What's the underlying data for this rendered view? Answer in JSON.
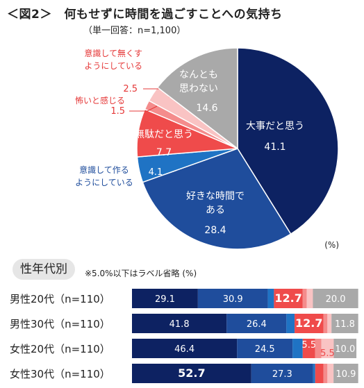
{
  "figure": {
    "title": "＜図2＞　何もせずに時間を過ごすことへの気持ち",
    "subtitle": "（単一回答：n=1,100）"
  },
  "chart_data": [
    {
      "type": "pie",
      "unit_label": "(%)",
      "slices": [
        {
          "label_lines": [
            "大事だと思う"
          ],
          "value": 41.1,
          "value_label": "41.1",
          "color": "#0d2262",
          "label_color": "#ffffff",
          "inside": true
        },
        {
          "label_lines": [
            "好きな時間で",
            "ある"
          ],
          "value": 28.4,
          "value_label": "28.4",
          "color": "#1f4d9c",
          "label_color": "#ffffff",
          "inside": true
        },
        {
          "label_lines": [
            "意識して作る",
            "ようにしている"
          ],
          "value": 4.1,
          "value_label": "4.1",
          "color": "#1f73c4",
          "label_color": "#1f4d9c",
          "inside": false
        },
        {
          "label_lines": [
            "無駄だと思う"
          ],
          "value": 7.7,
          "value_label": "7.7",
          "color": "#ef4b4b",
          "label_color": "#ffffff",
          "inside": true
        },
        {
          "label_lines": [
            "怖いと感じる"
          ],
          "value": 1.5,
          "value_label": "1.5",
          "color": "#f48c8c",
          "label_color": "#e53838",
          "inside": false
        },
        {
          "label_lines": [
            "意識して無くす",
            "ようにしている"
          ],
          "value": 2.5,
          "value_label": "2.5",
          "color": "#f9c3c3",
          "label_color": "#e53838",
          "inside": false
        },
        {
          "label_lines": [
            "なんとも",
            "思わない"
          ],
          "value": 14.6,
          "value_label": "14.6",
          "color": "#a9a9a9",
          "label_color": "#ffffff",
          "inside": true
        }
      ]
    },
    {
      "type": "bar",
      "orientation": "horizontal",
      "stacked": true,
      "heading": "性年代別",
      "note": "※5.0%以下はラベル省略",
      "unit_label": "(%)",
      "categories": [
        "男性20代（n=110）",
        "男性30代（n=110）",
        "女性20代（n=110）",
        "女性30代（n=110）"
      ],
      "series": [
        {
          "color": "#0d2262",
          "values": [
            29.1,
            41.8,
            46.4,
            52.7
          ]
        },
        {
          "color": "#1f4d9c",
          "values": [
            30.9,
            26.4,
            24.5,
            27.3
          ]
        },
        {
          "color": "#1f73c4",
          "values": [
            2.7,
            3.6,
            4.5,
            0.9
          ]
        },
        {
          "color": "#ef4b4b",
          "values": [
            12.7,
            12.7,
            5.5,
            3.6
          ]
        },
        {
          "color": "#f48c8c",
          "values": [
            1.8,
            1.8,
            2.7,
            1.8
          ]
        },
        {
          "color": "#f9c3c3",
          "values": [
            2.7,
            1.8,
            5.5,
            2.7
          ]
        },
        {
          "color": "#a9a9a9",
          "values": [
            20.0,
            11.8,
            10.0,
            10.9
          ]
        }
      ],
      "value_labels": [
        [
          "29.1",
          "30.9",
          "",
          "12.7",
          "",
          "",
          "20.0"
        ],
        [
          "41.8",
          "26.4",
          "",
          "12.7",
          "",
          "",
          "11.8"
        ],
        [
          "46.4",
          "24.5",
          "",
          "5.5",
          "",
          "5.5",
          "10.0"
        ],
        [
          "52.7",
          "27.3",
          "",
          "",
          "",
          "",
          "10.9"
        ]
      ]
    }
  ]
}
